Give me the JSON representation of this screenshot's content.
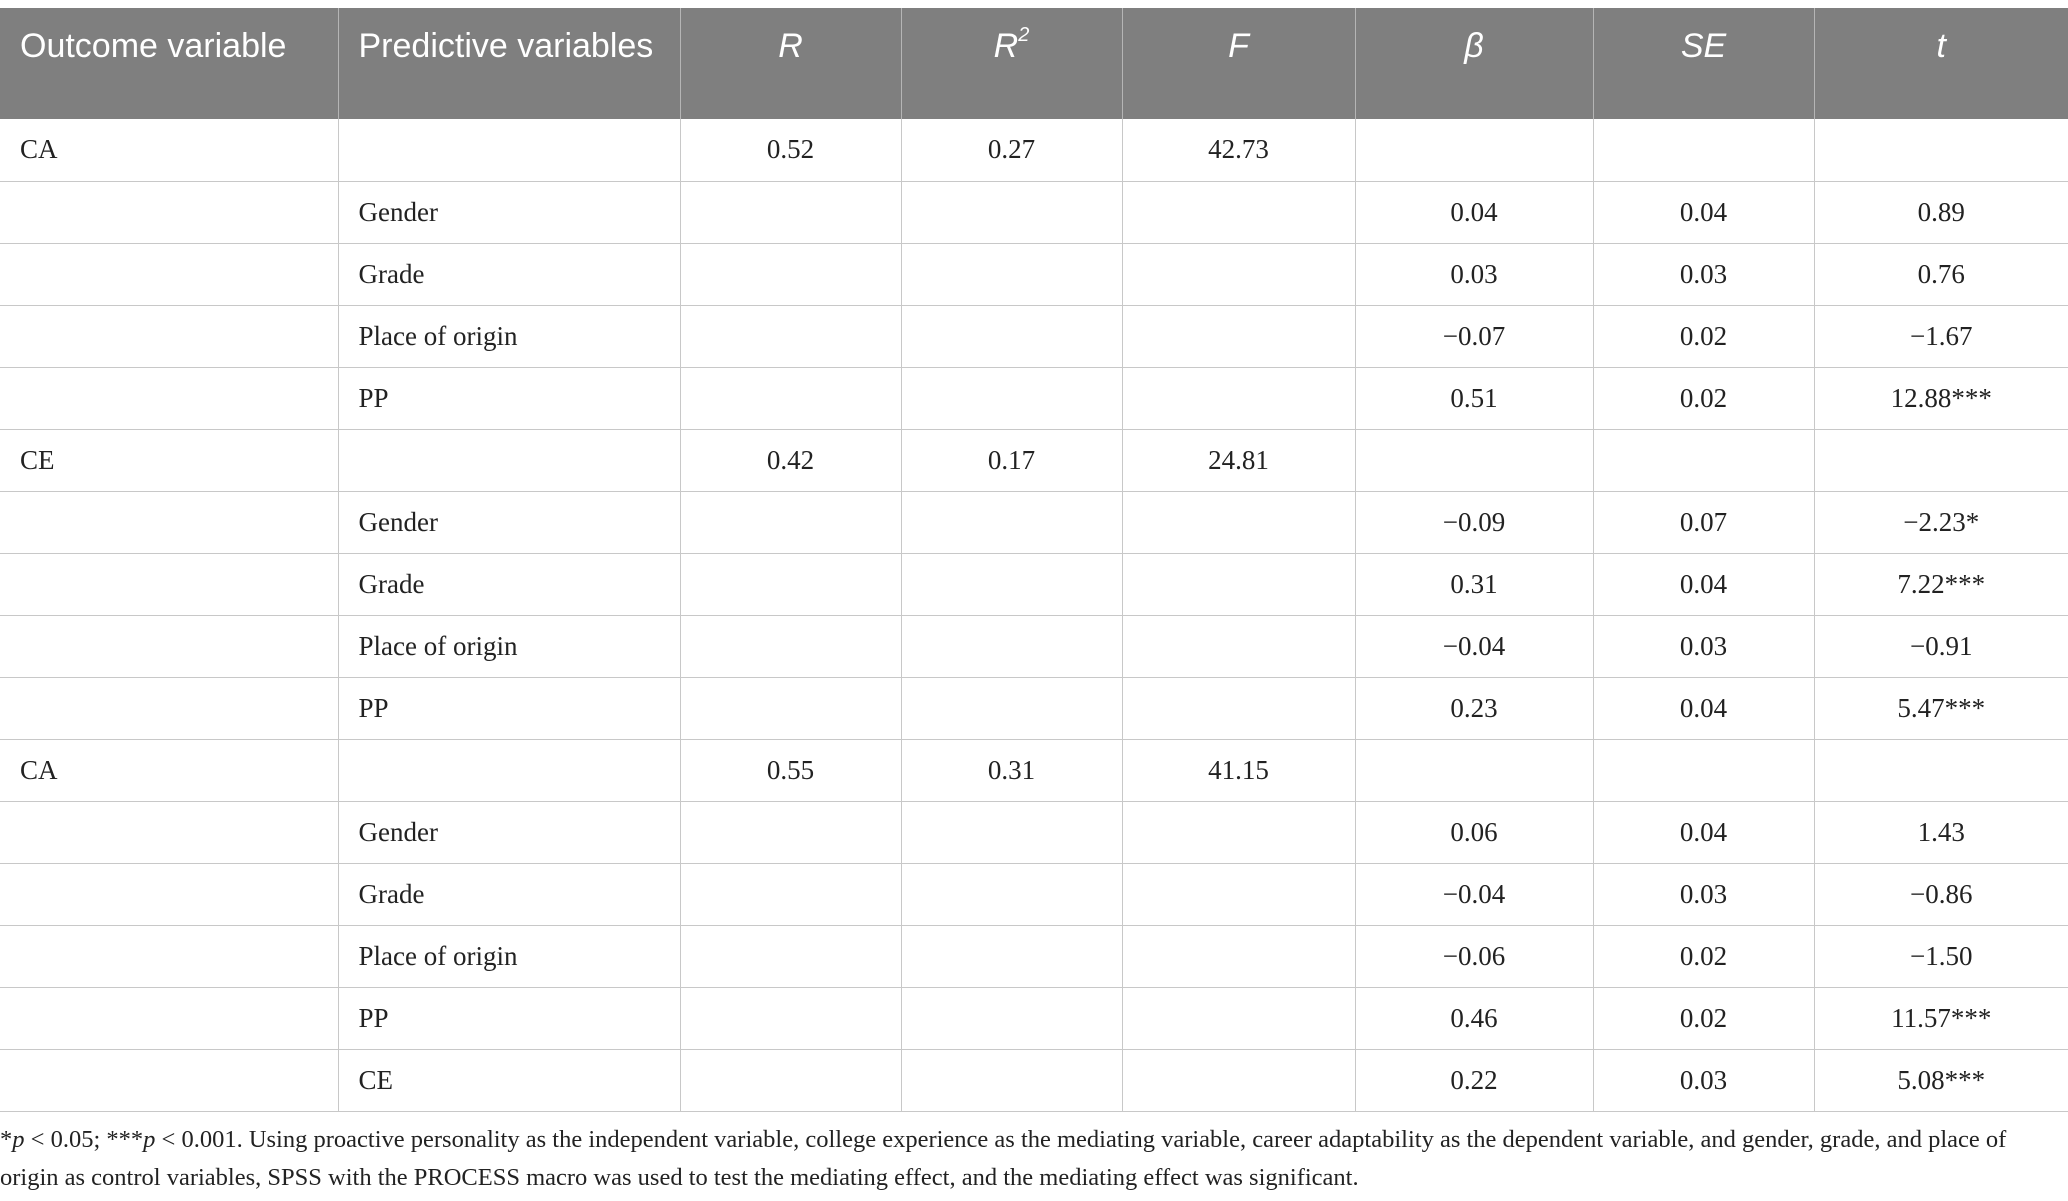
{
  "header": {
    "outcome": "Outcome variable",
    "predictive": "Predictive variables",
    "r": "R",
    "r2_base": "R",
    "r2_sup": "2",
    "f": "F",
    "beta": "β",
    "se": "SE",
    "t": "t"
  },
  "rows": [
    {
      "outcome": "CA",
      "predictor": "",
      "r": "0.52",
      "r2": "0.27",
      "f": "42.73",
      "beta": "",
      "se": "",
      "t": ""
    },
    {
      "outcome": "",
      "predictor": "Gender",
      "r": "",
      "r2": "",
      "f": "",
      "beta": "0.04",
      "se": "0.04",
      "t": "0.89"
    },
    {
      "outcome": "",
      "predictor": "Grade",
      "r": "",
      "r2": "",
      "f": "",
      "beta": "0.03",
      "se": "0.03",
      "t": "0.76"
    },
    {
      "outcome": "",
      "predictor": "Place of origin",
      "r": "",
      "r2": "",
      "f": "",
      "beta": "−0.07",
      "se": "0.02",
      "t": "−1.67"
    },
    {
      "outcome": "",
      "predictor": "PP",
      "r": "",
      "r2": "",
      "f": "",
      "beta": "0.51",
      "se": "0.02",
      "t": "12.88***"
    },
    {
      "outcome": "CE",
      "predictor": "",
      "r": "0.42",
      "r2": "0.17",
      "f": "24.81",
      "beta": "",
      "se": "",
      "t": ""
    },
    {
      "outcome": "",
      "predictor": "Gender",
      "r": "",
      "r2": "",
      "f": "",
      "beta": "−0.09",
      "se": "0.07",
      "t": "−2.23*"
    },
    {
      "outcome": "",
      "predictor": "Grade",
      "r": "",
      "r2": "",
      "f": "",
      "beta": "0.31",
      "se": "0.04",
      "t": "7.22***"
    },
    {
      "outcome": "",
      "predictor": "Place of origin",
      "r": "",
      "r2": "",
      "f": "",
      "beta": "−0.04",
      "se": "0.03",
      "t": "−0.91"
    },
    {
      "outcome": "",
      "predictor": "PP",
      "r": "",
      "r2": "",
      "f": "",
      "beta": "0.23",
      "se": "0.04",
      "t": "5.47***"
    },
    {
      "outcome": "CA",
      "predictor": "",
      "r": "0.55",
      "r2": "0.31",
      "f": "41.15",
      "beta": "",
      "se": "",
      "t": ""
    },
    {
      "outcome": "",
      "predictor": "Gender",
      "r": "",
      "r2": "",
      "f": "",
      "beta": "0.06",
      "se": "0.04",
      "t": "1.43"
    },
    {
      "outcome": "",
      "predictor": "Grade",
      "r": "",
      "r2": "",
      "f": "",
      "beta": "−0.04",
      "se": "0.03",
      "t": "−0.86"
    },
    {
      "outcome": "",
      "predictor": "Place of origin",
      "r": "",
      "r2": "",
      "f": "",
      "beta": "−0.06",
      "se": "0.02",
      "t": "−1.50"
    },
    {
      "outcome": "",
      "predictor": "PP",
      "r": "",
      "r2": "",
      "f": "",
      "beta": "0.46",
      "se": "0.02",
      "t": "11.57***"
    },
    {
      "outcome": "",
      "predictor": "CE",
      "r": "",
      "r2": "",
      "f": "",
      "beta": "0.22",
      "se": "0.03",
      "t": "5.08***"
    }
  ],
  "footnote": {
    "star1": "*",
    "p1": "p",
    "part1": " < 0.05; ***",
    "p2": "p",
    "part2": " < 0.001. Using proactive personality as the independent variable, college experience as the mediating variable, career adaptability as the dependent variable, and gender, grade, and place of origin as control variables, SPSS with the PROCESS macro was used to test the mediating effect, and the mediating effect was significant."
  },
  "colors": {
    "header_bg": "#7f7f7f",
    "header_text": "#ffffff",
    "grid": "#c8c8c8",
    "body_text": "#222222"
  }
}
